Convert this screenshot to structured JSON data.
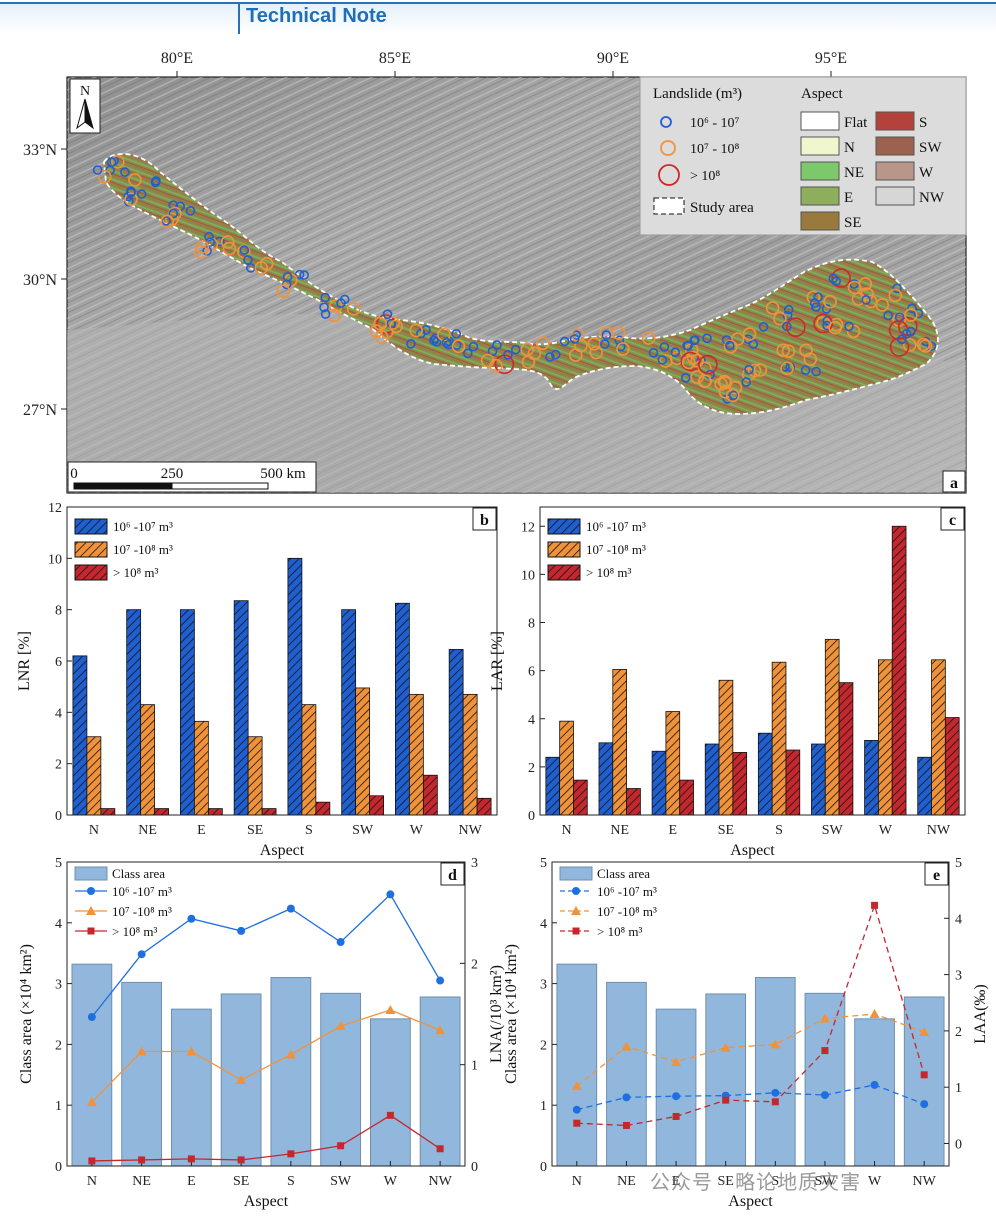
{
  "header": {
    "title": "Technical Note"
  },
  "panel_a": {
    "label": "a",
    "lon_ticks": [
      "80°E",
      "85°E",
      "90°E",
      "95°E"
    ],
    "lat_ticks": [
      "33°N",
      "30°N",
      "27°N"
    ],
    "north": "N",
    "scale": {
      "t0": "0",
      "t1": "250",
      "t2": "500 km"
    },
    "legend": {
      "landslide_title": "Landslide (m³)",
      "classes": [
        "10⁶ - 10⁷",
        "10⁷ - 10⁸",
        "> 10⁸"
      ],
      "study_area": "Study area",
      "aspect_title": "Aspect",
      "aspect_classes": [
        {
          "name": "Flat",
          "color": "#ffffff"
        },
        {
          "name": "N",
          "color": "#f0f7cf"
        },
        {
          "name": "NE",
          "color": "#7cc86a"
        },
        {
          "name": "E",
          "color": "#8fae5c"
        },
        {
          "name": "SE",
          "color": "#9a7a3c"
        },
        {
          "name": "S",
          "color": "#b4423c"
        },
        {
          "name": "SW",
          "color": "#9c6250"
        },
        {
          "name": "W",
          "color": "#b8968a"
        },
        {
          "name": "NW",
          "color": "#d6d6d6"
        }
      ]
    }
  },
  "chart_data": [
    {
      "panel": "b",
      "type": "bar",
      "categories": [
        "N",
        "NE",
        "E",
        "SE",
        "S",
        "SW",
        "W",
        "NW"
      ],
      "xlabel": "Aspect",
      "ylabel": "LNR [%]",
      "ylim": [
        0,
        12
      ],
      "yticks": [
        "0",
        "2",
        "4",
        "6",
        "8",
        "10",
        "12"
      ],
      "legend_position": "top-left",
      "series": [
        {
          "name": "10⁶ -10⁷ m³",
          "color": "#1f5fd0",
          "values": [
            6.2,
            8.0,
            8.0,
            8.35,
            10.0,
            8.0,
            8.25,
            6.45
          ]
        },
        {
          "name": "10⁷ -10⁸ m³",
          "color": "#f0923a",
          "values": [
            3.05,
            4.3,
            3.65,
            3.05,
            4.3,
            4.95,
            4.7,
            4.7
          ]
        },
        {
          "name": "> 10⁸ m³",
          "color": "#c4272d",
          "values": [
            0.25,
            0.25,
            0.25,
            0.25,
            0.5,
            0.75,
            1.55,
            0.65
          ]
        }
      ]
    },
    {
      "panel": "c",
      "type": "bar",
      "categories": [
        "N",
        "NE",
        "E",
        "SE",
        "S",
        "SW",
        "W",
        "NW"
      ],
      "xlabel": "Aspect",
      "ylabel": "LAR [%]",
      "ylim": [
        0,
        12.8
      ],
      "yticks": [
        "0",
        "2",
        "4",
        "6",
        "8",
        "10",
        "12"
      ],
      "legend_position": "top-left",
      "series": [
        {
          "name": "10⁶ -10⁷ m³",
          "color": "#1f5fd0",
          "values": [
            2.4,
            3.0,
            2.65,
            2.95,
            3.4,
            2.95,
            3.1,
            2.4
          ]
        },
        {
          "name": "10⁷ -10⁸ m³",
          "color": "#f0923a",
          "values": [
            3.9,
            6.05,
            4.3,
            5.6,
            6.35,
            7.3,
            6.45,
            6.45
          ]
        },
        {
          "name": "> 10⁸ m³",
          "color": "#c4272d",
          "values": [
            1.45,
            1.1,
            1.45,
            2.6,
            2.7,
            5.5,
            12.0,
            4.05
          ]
        }
      ]
    },
    {
      "panel": "d",
      "type": "bar+line",
      "categories": [
        "N",
        "NE",
        "E",
        "SE",
        "S",
        "SW",
        "W",
        "NW"
      ],
      "xlabel": "Aspect",
      "ylabel": "Class area (×10⁴ km²)",
      "y2label": "LNA(/10³ km²)",
      "ylim": [
        0,
        5
      ],
      "y2lim": [
        0,
        3
      ],
      "yticks": [
        "0",
        "1",
        "2",
        "3",
        "4",
        "5"
      ],
      "y2ticks": [
        "0",
        "1",
        "2",
        "3"
      ],
      "line_style": "solid",
      "bar_series": {
        "name": "Class area",
        "values": [
          3.32,
          3.02,
          2.58,
          2.83,
          3.1,
          2.84,
          2.42,
          2.78
        ]
      },
      "series": [
        {
          "name": "10⁶ -10⁷ m³",
          "marker": "circle",
          "color": "#1f6fe0",
          "values": [
            1.47,
            2.09,
            2.44,
            2.32,
            2.54,
            2.21,
            2.68,
            1.83
          ]
        },
        {
          "name": "10⁷ -10⁸ m³",
          "marker": "triangle",
          "color": "#f0923a",
          "values": [
            0.63,
            1.13,
            1.13,
            0.85,
            1.1,
            1.38,
            1.54,
            1.34
          ]
        },
        {
          "name": "> 10⁸ m³",
          "marker": "square",
          "color": "#c4272d",
          "values": [
            0.05,
            0.06,
            0.07,
            0.06,
            0.12,
            0.2,
            0.5,
            0.17
          ]
        }
      ]
    },
    {
      "panel": "e",
      "type": "bar+line",
      "categories": [
        "N",
        "NE",
        "E",
        "SE",
        "S",
        "SW",
        "W",
        "NW"
      ],
      "xlabel": "Aspect",
      "ylabel": "Class area (×10⁴ km²)",
      "y2label": "LAA(‰)",
      "ylim": [
        0,
        5
      ],
      "y2lim": [
        -0.4,
        5
      ],
      "yticks": [
        "0",
        "1",
        "2",
        "3",
        "4",
        "5"
      ],
      "y2ticks": [
        "0",
        "1",
        "2",
        "3",
        "4",
        "5"
      ],
      "line_style": "dashed",
      "bar_series": {
        "name": "Class area",
        "values": [
          3.32,
          3.02,
          2.58,
          2.83,
          3.1,
          2.84,
          2.42,
          2.78
        ]
      },
      "series": [
        {
          "name": "10⁶ -10⁷ m³",
          "marker": "circle",
          "color": "#1f6fe0",
          "values": [
            0.6,
            0.82,
            0.84,
            0.85,
            0.9,
            0.86,
            1.04,
            0.7
          ]
        },
        {
          "name": "10⁷ -10⁸ m³",
          "marker": "triangle",
          "color": "#f0923a",
          "values": [
            1.02,
            1.72,
            1.45,
            1.7,
            1.76,
            2.22,
            2.3,
            1.98
          ]
        },
        {
          "name": "> 10⁸ m³",
          "marker": "square",
          "color": "#c4272d",
          "values": [
            0.36,
            0.32,
            0.48,
            0.77,
            0.74,
            1.65,
            4.23,
            1.22
          ]
        }
      ]
    }
  ],
  "watermark": "公众号 · 略论地质灾害"
}
